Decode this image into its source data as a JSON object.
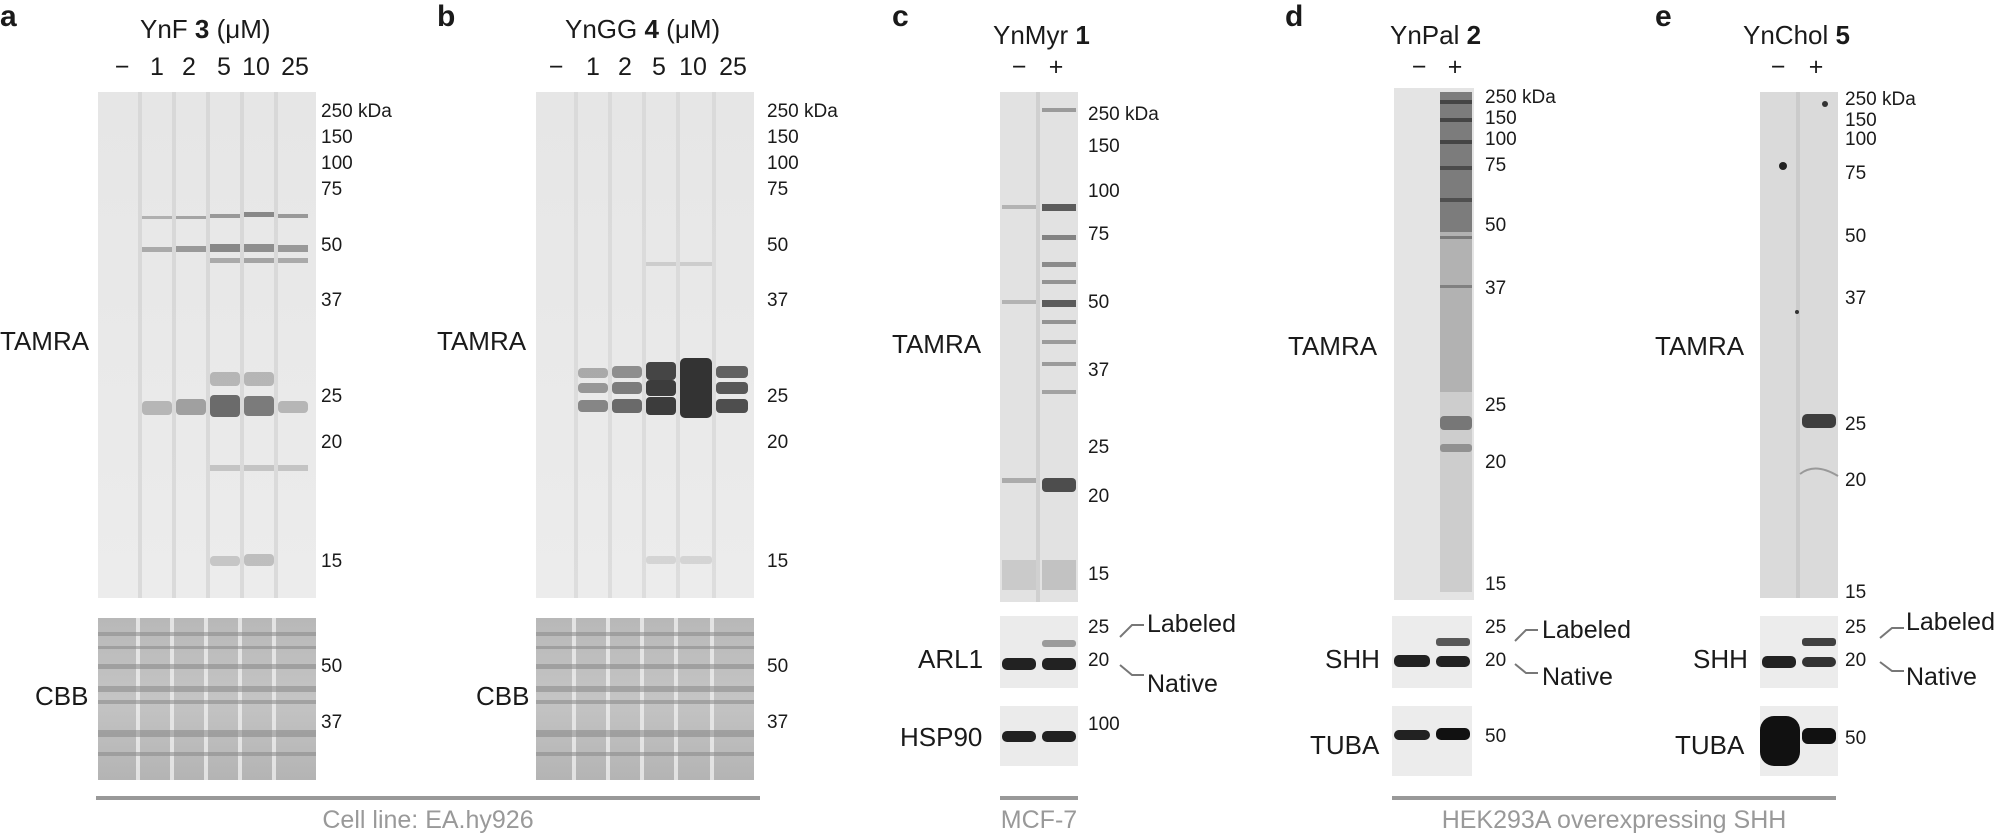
{
  "panels": [
    {
      "letter": "a",
      "title_main": "YnF ",
      "title_num": "3",
      "title_unit": " (μM)",
      "conditions": [
        "−",
        "1",
        "2",
        "5",
        "10",
        "25"
      ],
      "stain_main": "TAMRA",
      "stain_loading": "CBB",
      "mw_main": [
        "250 kDa",
        "150",
        "100",
        "75",
        "50",
        "37",
        "25",
        "20",
        "15"
      ],
      "mw_loading": [
        "50",
        "37"
      ]
    },
    {
      "letter": "b",
      "title_main": "YnGG ",
      "title_num": "4",
      "title_unit": " (μM)",
      "conditions": [
        "−",
        "1",
        "2",
        "5",
        "10",
        "25"
      ],
      "stain_main": "TAMRA",
      "stain_loading": "CBB",
      "mw_main": [
        "250 kDa",
        "150",
        "100",
        "75",
        "50",
        "37",
        "25",
        "20",
        "15"
      ],
      "mw_loading": [
        "50",
        "37"
      ]
    },
    {
      "letter": "c",
      "title_main": "YnMyr ",
      "title_num": "1",
      "conditions": [
        "−",
        "+"
      ],
      "stain_main": "TAMRA",
      "blot1": "ARL1",
      "blot2": "HSP90",
      "mw_main": [
        "250 kDa",
        "150",
        "100",
        "75",
        "50",
        "37",
        "25",
        "20",
        "15"
      ],
      "mw_blot1": [
        "25",
        "20"
      ],
      "mw_blot2": [
        "100"
      ],
      "band_labeled": "Labeled",
      "band_native": "Native"
    },
    {
      "letter": "d",
      "title_main": "YnPal ",
      "title_num": "2",
      "conditions": [
        "−",
        "+"
      ],
      "stain_main": "TAMRA",
      "blot1": "SHH",
      "blot2": "TUBA",
      "mw_main": [
        "250 kDa",
        "150",
        "100",
        "75",
        "50",
        "37",
        "25",
        "20",
        "15"
      ],
      "mw_blot1": [
        "25",
        "20"
      ],
      "mw_blot2": [
        "50"
      ],
      "band_labeled": "Labeled",
      "band_native": "Native"
    },
    {
      "letter": "e",
      "title_main": "YnChol ",
      "title_num": "5",
      "conditions": [
        "−",
        "+"
      ],
      "stain_main": "TAMRA",
      "blot1": "SHH",
      "blot2": "TUBA",
      "mw_main": [
        "250 kDa",
        "150",
        "100",
        "75",
        "50",
        "37",
        "25",
        "20",
        "15"
      ],
      "mw_blot1": [
        "25",
        "20"
      ],
      "mw_blot2": [
        "50"
      ],
      "band_labeled": "Labeled",
      "band_native": "Native"
    }
  ],
  "footers": [
    "Cell line: EA.hy926",
    "MCF-7",
    "HEK293A overexpressing SHH"
  ]
}
